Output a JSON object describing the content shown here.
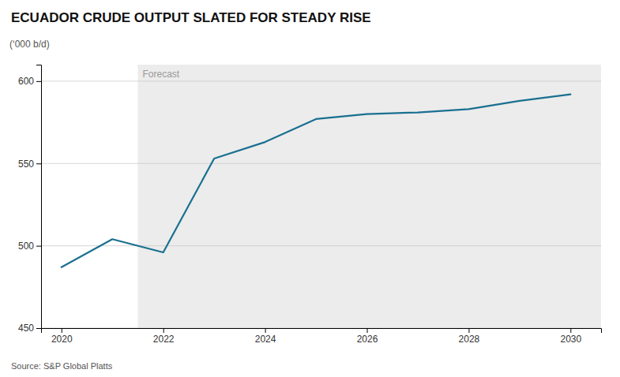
{
  "chart_data": {
    "type": "line",
    "title": "ECUADOR CRUDE OUTPUT SLATED FOR STEADY RISE",
    "ylabel": "(‘000 b/d)",
    "source": "Source: S&P Global Platts",
    "forecast_label": "Forecast",
    "forecast_start": 2021.5,
    "x": [
      2020,
      2021,
      2022,
      2023,
      2024,
      2025,
      2026,
      2027,
      2028,
      2029,
      2030
    ],
    "values": [
      487,
      504,
      496,
      553,
      563,
      577,
      580,
      581,
      583,
      588,
      592
    ],
    "color": "#1a7090",
    "xlim": [
      2019.6,
      2030.6
    ],
    "ylim": [
      450,
      610
    ],
    "xticks": [
      2020,
      2022,
      2024,
      2026,
      2028,
      2030
    ],
    "yticks": [
      450,
      500,
      550,
      600
    ],
    "grid": true
  }
}
